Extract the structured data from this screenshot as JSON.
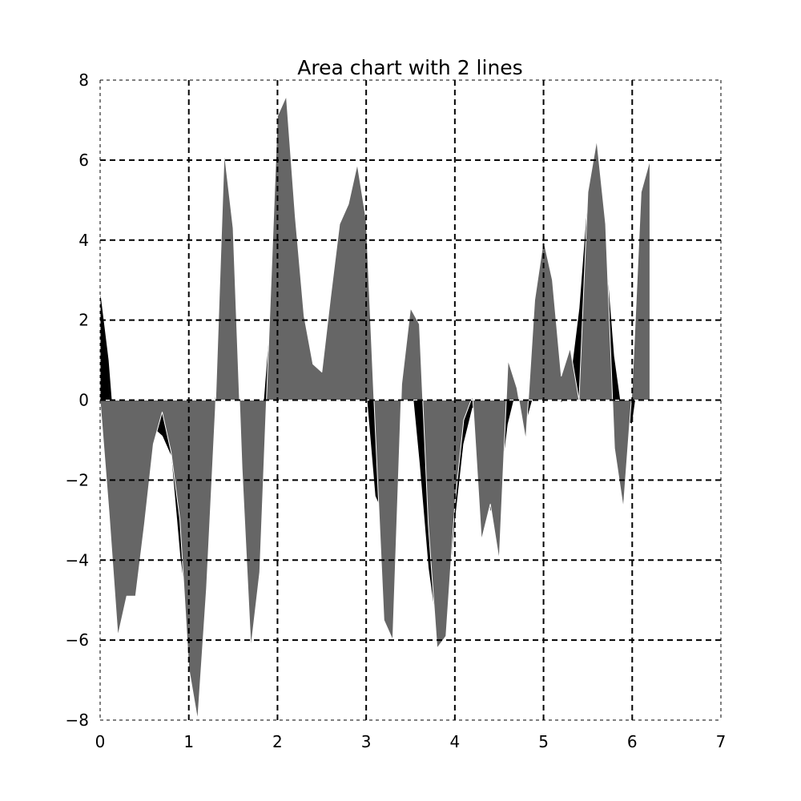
{
  "chart_data": {
    "type": "area",
    "title": "Area chart with 2 lines",
    "xlabel": "",
    "ylabel": "",
    "xlim": [
      0,
      7
    ],
    "ylim": [
      -8,
      8
    ],
    "x_ticks": [
      0,
      1,
      2,
      3,
      4,
      5,
      6,
      7
    ],
    "y_ticks": [
      -8,
      -6,
      -4,
      -2,
      0,
      2,
      4,
      6,
      8
    ],
    "x_tick_labels": [
      "0",
      "1",
      "2",
      "3",
      "4",
      "5",
      "6",
      "7"
    ],
    "y_tick_labels": [
      "−8",
      "−6",
      "−4",
      "−2",
      "0",
      "2",
      "4",
      "6",
      "8"
    ],
    "grid": true,
    "grid_style": "dashed",
    "x": [
      0.0,
      0.1,
      0.2,
      0.3,
      0.4,
      0.5,
      0.6,
      0.7,
      0.8,
      0.9,
      1.0,
      1.1,
      1.2,
      1.3,
      1.4,
      1.5,
      1.6,
      1.7,
      1.8,
      1.9,
      2.0,
      2.1,
      2.2,
      2.3,
      2.4,
      2.5,
      2.6,
      2.7,
      2.8,
      2.9,
      3.0,
      3.1,
      3.2,
      3.3,
      3.4,
      3.5,
      3.6,
      3.7,
      3.8,
      3.9,
      4.0,
      4.1,
      4.2,
      4.3,
      4.4,
      4.5,
      4.6,
      4.7,
      4.8,
      4.9,
      5.0,
      5.1,
      5.2,
      5.3,
      5.4,
      5.5,
      5.6,
      5.7,
      5.8,
      5.9,
      6.0,
      6.1,
      6.2
    ],
    "series": [
      {
        "color": "#000000",
        "values": [
          2.8,
          1.0,
          -1.8,
          -4.4,
          -2.3,
          -0.9,
          -0.7,
          -0.9,
          -1.4,
          -3.9,
          -5.6,
          -5.2,
          -2.4,
          0.2,
          1.8,
          1.3,
          -0.4,
          -1.9,
          -1.2,
          1.6,
          4.3,
          5.7,
          4.7,
          1.9,
          0.5,
          0.5,
          0.7,
          1.6,
          4.4,
          2.9,
          0.2,
          -2.4,
          -2.9,
          -1.3,
          0.2,
          0.7,
          -1.6,
          -4.2,
          -5.8,
          -5.7,
          -3.1,
          -1.1,
          -0.2,
          -1.4,
          -2.8,
          -2.4,
          -0.6,
          0.3,
          -0.6,
          0.2,
          3.1,
          1.2,
          -0.1,
          0.5,
          2.3,
          5.2,
          6.0,
          3.9,
          1.1,
          -0.5,
          -0.6,
          1.0,
          2.6
        ]
      },
      {
        "color": "#666666",
        "values": [
          0.0,
          -2.8,
          -5.9,
          -4.9,
          -4.9,
          -3.1,
          -1.1,
          -0.3,
          -1.3,
          -3.0,
          -6.7,
          -8.0,
          -4.7,
          -0.2,
          6.2,
          4.3,
          -1.7,
          -6.2,
          -4.3,
          1.4,
          7.1,
          7.6,
          4.6,
          2.1,
          0.9,
          0.7,
          2.6,
          4.4,
          4.9,
          5.9,
          4.5,
          -0.6,
          -5.5,
          -6.0,
          0.4,
          2.3,
          1.9,
          -3.1,
          -6.2,
          -5.9,
          -2.6,
          -0.5,
          0.1,
          -3.5,
          -2.6,
          -4.0,
          1.0,
          0.3,
          -1.0,
          2.5,
          4.0,
          3.0,
          0.6,
          1.3,
          0.0,
          5.2,
          6.5,
          4.4,
          -1.2,
          -2.7,
          0.3,
          5.2,
          6.0
        ]
      }
    ]
  }
}
